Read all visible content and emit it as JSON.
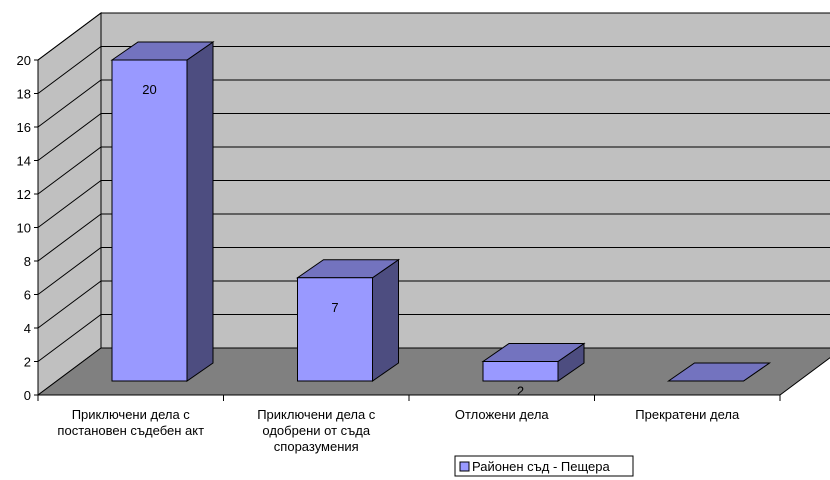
{
  "chart_data": {
    "type": "bar",
    "title": "",
    "xlabel": "",
    "ylabel": "",
    "categories": [
      [
        "Приключени дела с",
        "постановен съдебен акт"
      ],
      [
        "Приключени дела с",
        "одобрени от съда",
        "споразумения"
      ],
      [
        "Отложени дела"
      ],
      [
        "Прекратени дела"
      ]
    ],
    "series": [
      {
        "name": "Районен съд - Пещера",
        "values": [
          20,
          7,
          2,
          0
        ]
      }
    ],
    "data_labels": [
      "20",
      "7",
      "2",
      ""
    ],
    "ylim": [
      0,
      20
    ],
    "yticks": [
      0,
      2,
      4,
      6,
      8,
      10,
      12,
      14,
      16,
      18,
      20
    ],
    "grid": true,
    "three_d": true,
    "legend_position": "bottom",
    "colors": {
      "wall": "#c0c0c0",
      "floor": "#808080",
      "bar_front": "#9999ff",
      "bar_side": "#4d4d80",
      "bar_top": "#7373bf",
      "axis": "#000000"
    }
  }
}
